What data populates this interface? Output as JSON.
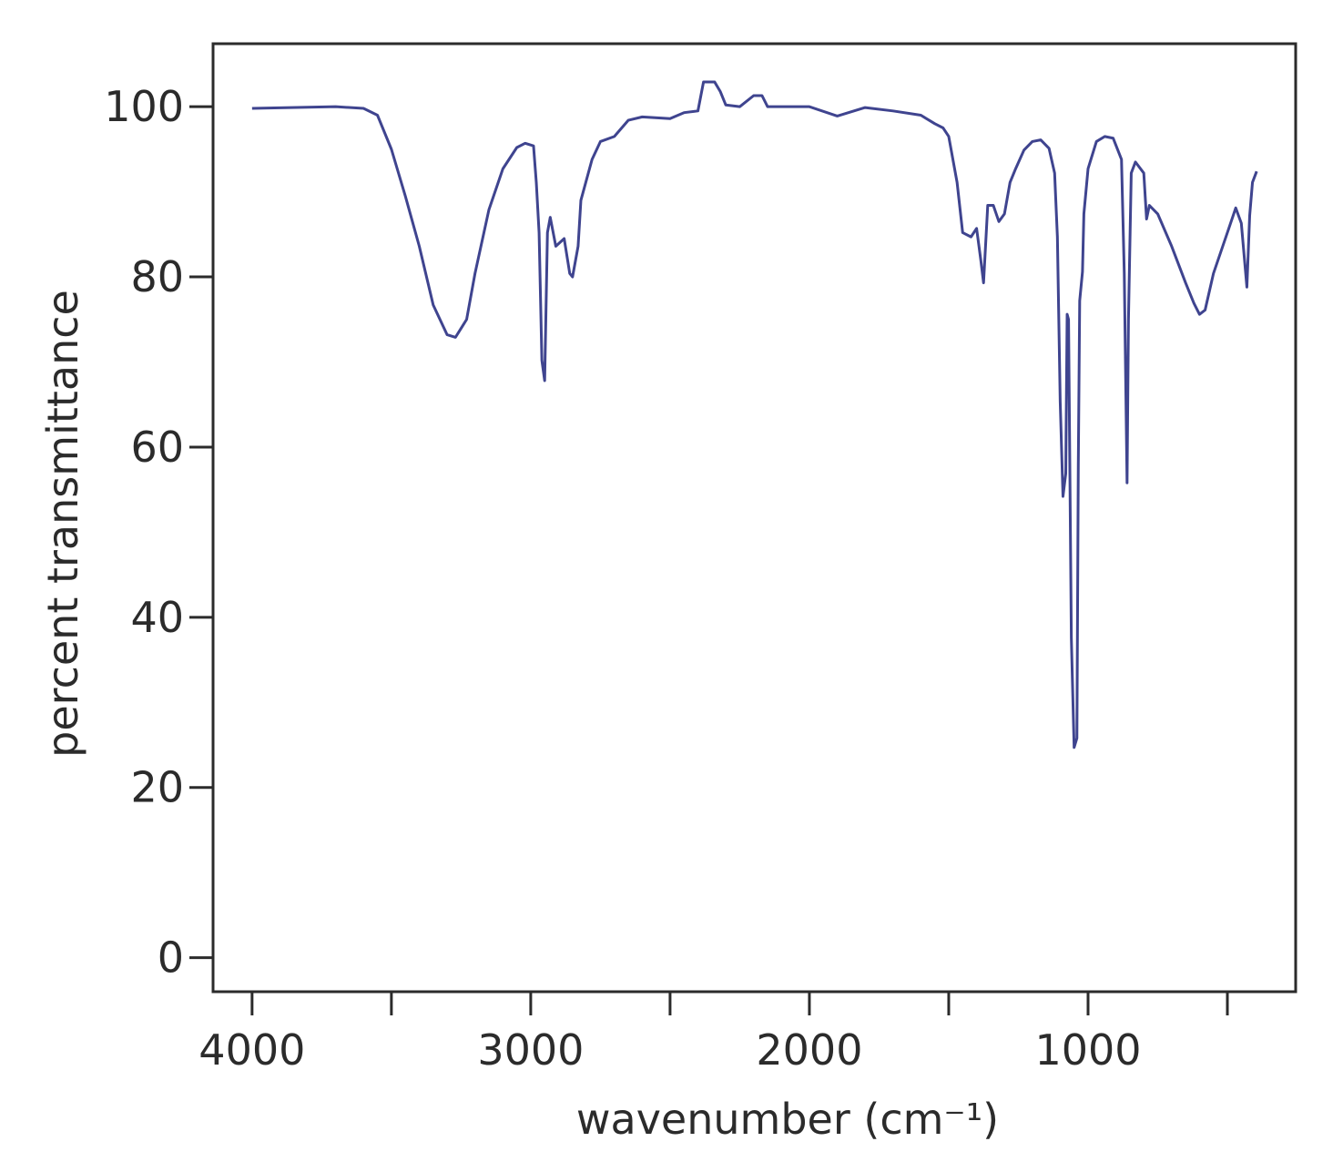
{
  "chart_data": {
    "type": "line",
    "x_label": "wavenumber (cm⁻¹)",
    "y_label": "percent transmittance",
    "xlim": [
      4140,
      255
    ],
    "ylim": [
      -4,
      107.4
    ],
    "xticks": [
      4000,
      3000,
      2000,
      1000
    ],
    "xminor_ticks": [
      3500,
      2500,
      1500,
      500
    ],
    "yticks": [
      0,
      20,
      40,
      60,
      80,
      100
    ],
    "x": [
      4000,
      3700,
      3600,
      3550,
      3500,
      3450,
      3400,
      3350,
      3300,
      3270,
      3230,
      3200,
      3150,
      3100,
      3050,
      3020,
      2990,
      2980,
      2970,
      2960,
      2950,
      2940,
      2930,
      2910,
      2880,
      2860,
      2850,
      2830,
      2820,
      2780,
      2750,
      2700,
      2650,
      2600,
      2500,
      2450,
      2400,
      2380,
      2340,
      2320,
      2300,
      2250,
      2200,
      2170,
      2150,
      2000,
      1900,
      1800,
      1700,
      1600,
      1550,
      1520,
      1500,
      1470,
      1450,
      1420,
      1400,
      1385,
      1375,
      1360,
      1340,
      1320,
      1300,
      1280,
      1260,
      1230,
      1200,
      1170,
      1140,
      1120,
      1110,
      1100,
      1090,
      1080,
      1075,
      1070,
      1060,
      1050,
      1040,
      1035,
      1030,
      1020,
      1015,
      1000,
      970,
      940,
      910,
      880,
      870,
      860,
      855,
      845,
      830,
      800,
      790,
      780,
      750,
      700,
      650,
      620,
      600,
      580,
      550,
      500,
      470,
      450,
      430,
      420,
      410,
      395
    ],
    "series": [
      {
        "color": "#3f448f",
        "values": [
          99.8,
          100,
          99.8,
          99,
          95,
          89.5,
          83.6,
          76.7,
          73.2,
          72.9,
          75,
          80.4,
          87.9,
          92.7,
          95.2,
          95.7,
          95.4,
          91.1,
          85.2,
          70.2,
          67.8,
          85.2,
          87,
          83.6,
          84.5,
          80.4,
          80,
          83.6,
          89,
          93.8,
          95.9,
          96.5,
          98.4,
          98.8,
          98.6,
          99.3,
          99.5,
          102.9,
          102.9,
          101.8,
          100.2,
          100,
          101.3,
          101.3,
          100,
          100,
          98.9,
          99.9,
          99.5,
          99,
          98,
          97.5,
          96.5,
          91.1,
          85.2,
          84.7,
          85.7,
          82,
          79.3,
          88.4,
          88.4,
          86.5,
          87.4,
          91.1,
          92.7,
          94.9,
          95.9,
          96.1,
          95.1,
          92.2,
          84.7,
          65.4,
          54.2,
          56.9,
          75.6,
          75,
          37.6,
          24.7,
          25.8,
          57.9,
          77.2,
          80.6,
          87.4,
          92.7,
          95.9,
          96.5,
          96.3,
          93.8,
          80.4,
          55.8,
          75,
          92.2,
          93.5,
          92.2,
          86.8,
          88.4,
          87.4,
          83.6,
          79.3,
          76.9,
          75.6,
          76.1,
          80.4,
          85.2,
          88.1,
          86.3,
          78.8,
          87.2,
          91.1,
          92.4
        ]
      }
    ],
    "grid": false
  }
}
